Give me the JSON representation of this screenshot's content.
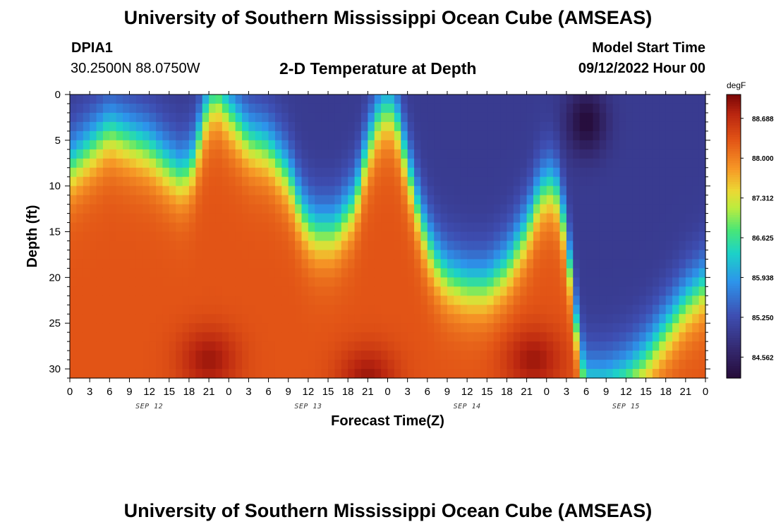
{
  "header": {
    "title": "University of Southern Mississippi Ocean Cube (AMSEAS)",
    "station_id": "DPIA1",
    "coordinates": "30.2500N  88.0750W",
    "plot_title": "2-D Temperature at Depth",
    "model_start_label": "Model Start Time",
    "model_start_value": "09/12/2022 Hour 00"
  },
  "footer": {
    "title": "University of Southern Mississippi Ocean Cube (AMSEAS)"
  },
  "chart_data": {
    "type": "heatmap",
    "title": "2-D Temperature at Depth",
    "xlabel": "Forecast Time(Z)",
    "ylabel": "Depth (ft)",
    "x_range_hours": [
      0,
      96
    ],
    "y_range_ft": [
      0,
      31
    ],
    "x_tick_labels": [
      "0",
      "3",
      "6",
      "9",
      "12",
      "15",
      "18",
      "21",
      "0",
      "3",
      "6",
      "9",
      "12",
      "15",
      "18",
      "21",
      "0",
      "3",
      "6",
      "9",
      "12",
      "15",
      "18",
      "21",
      "0",
      "3",
      "6",
      "9",
      "12",
      "15",
      "18",
      "21",
      "0"
    ],
    "y_ticks": [
      0,
      5,
      10,
      15,
      20,
      25,
      30
    ],
    "date_labels": [
      {
        "label": "SEP 12",
        "hour": 12
      },
      {
        "label": "SEP 13",
        "hour": 36
      },
      {
        "label": "SEP 14",
        "hour": 60
      },
      {
        "label": "SEP 15",
        "hour": 84
      }
    ],
    "colorbar": {
      "unit": "degF",
      "min": 84.2,
      "max": 89.1,
      "tick_labels": [
        "88.688",
        "88.000",
        "87.312",
        "86.625",
        "85.938",
        "85.250",
        "84.562"
      ],
      "tick_values": [
        88.688,
        88.0,
        87.312,
        86.625,
        85.938,
        85.25,
        84.562
      ]
    },
    "thermocline_depth_ft": [
      {
        "hour": 0,
        "depth": 8
      },
      {
        "hour": 3,
        "depth": 6
      },
      {
        "hour": 6,
        "depth": 4
      },
      {
        "hour": 9,
        "depth": 5
      },
      {
        "hour": 12,
        "depth": 6
      },
      {
        "hour": 15,
        "depth": 8
      },
      {
        "hour": 17,
        "depth": 9
      },
      {
        "hour": 19,
        "depth": 7
      },
      {
        "hour": 20,
        "depth": 3
      },
      {
        "hour": 22,
        "depth": 0
      },
      {
        "hour": 24,
        "depth": 2
      },
      {
        "hour": 27,
        "depth": 5
      },
      {
        "hour": 30,
        "depth": 6
      },
      {
        "hour": 33,
        "depth": 9
      },
      {
        "hour": 35,
        "depth": 13
      },
      {
        "hour": 37,
        "depth": 15
      },
      {
        "hour": 40,
        "depth": 15
      },
      {
        "hour": 43,
        "depth": 12
      },
      {
        "hour": 45,
        "depth": 6
      },
      {
        "hour": 47,
        "depth": 2
      },
      {
        "hour": 49,
        "depth": 2
      },
      {
        "hour": 51,
        "depth": 8
      },
      {
        "hour": 53,
        "depth": 14
      },
      {
        "hour": 55,
        "depth": 18
      },
      {
        "hour": 57,
        "depth": 20
      },
      {
        "hour": 60,
        "depth": 21
      },
      {
        "hour": 63,
        "depth": 21
      },
      {
        "hour": 66,
        "depth": 19
      },
      {
        "hour": 69,
        "depth": 15
      },
      {
        "hour": 71,
        "depth": 11
      },
      {
        "hour": 73,
        "depth": 10
      },
      {
        "hour": 74,
        "depth": 12
      },
      {
        "hour": 75,
        "depth": 16
      },
      {
        "hour": 76,
        "depth": 22
      },
      {
        "hour": 77,
        "depth": 29
      },
      {
        "hour": 78,
        "depth": 32
      },
      {
        "hour": 81,
        "depth": 32
      },
      {
        "hour": 84,
        "depth": 31
      },
      {
        "hour": 87,
        "depth": 29
      },
      {
        "hour": 90,
        "depth": 26
      },
      {
        "hour": 93,
        "depth": 23
      },
      {
        "hour": 96,
        "depth": 21
      }
    ],
    "warm_cores": [
      {
        "hour": 21,
        "depth": 29
      },
      {
        "hour": 45,
        "depth": 31
      },
      {
        "hour": 70,
        "depth": 29
      }
    ],
    "cold_core": {
      "hour": 78,
      "depth": 3
    }
  }
}
